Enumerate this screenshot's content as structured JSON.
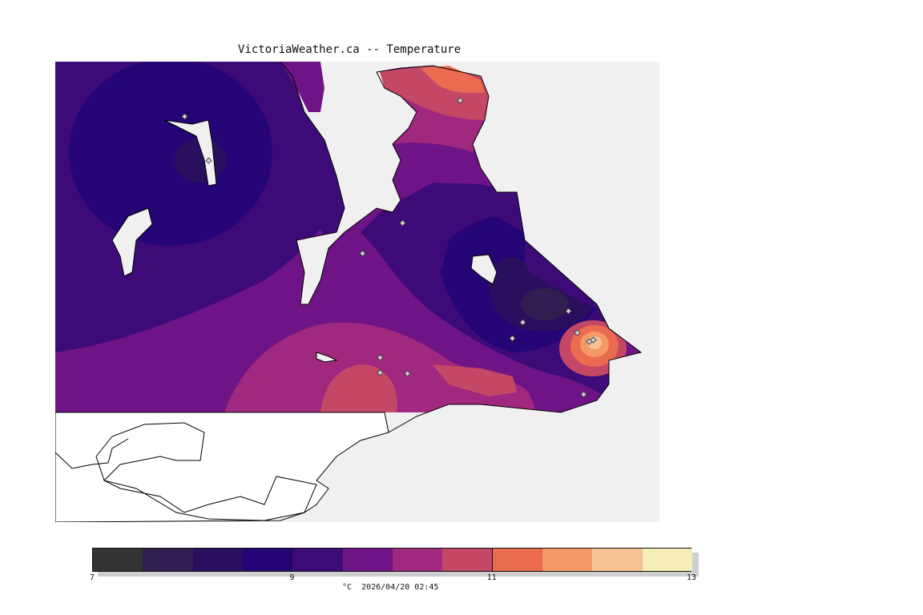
{
  "title": "VictoriaWeather.ca -- Temperature",
  "colorbar": {
    "min": 7,
    "max": 13,
    "tick_labels": [
      "7",
      "9",
      "11",
      "13"
    ],
    "tick_values": [
      7,
      9,
      11,
      13
    ],
    "colors": [
      "#333333",
      "#2f1e4f",
      "#2b0f5f",
      "#250575",
      "#3d0b78",
      "#6e1487",
      "#a0287f",
      "#c44866",
      "#ea6b4f",
      "#f59868",
      "#f5c393",
      "#f7edb8"
    ]
  },
  "caption": "°C  2026/04/20 02:45",
  "map_colors": {
    "water": "#f0f0f0",
    "land_no_data": "#ffffff",
    "coast": "#000000"
  }
}
